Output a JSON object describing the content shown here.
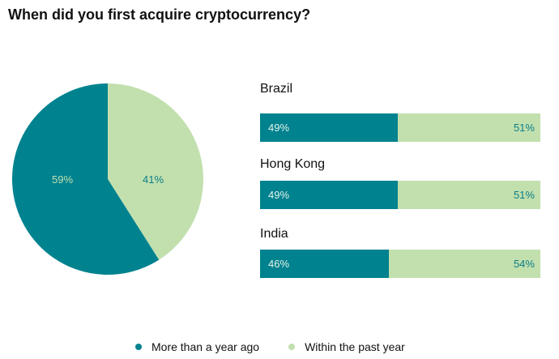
{
  "chart_data": [
    {
      "type": "pie",
      "title": "When did you first acquire cryptocurrency?",
      "slices": [
        {
          "name": "Within the past year",
          "value": 41,
          "label": "41%"
        },
        {
          "name": "More than a year ago",
          "value": 59,
          "label": "59%"
        }
      ]
    },
    {
      "type": "bar",
      "stacked": true,
      "orientation": "horizontal",
      "categories": [
        "Brazil",
        "Hong Kong",
        "India"
      ],
      "series": [
        {
          "name": "More than a year ago",
          "values": [
            49,
            49,
            46
          ],
          "labels": [
            "49%",
            "49%",
            "46%"
          ]
        },
        {
          "name": "Within the past year",
          "values": [
            51,
            51,
            54
          ],
          "labels": [
            "51%",
            "51%",
            "54%"
          ]
        }
      ]
    }
  ],
  "legend": [
    "More than a year ago",
    "Within the past year"
  ],
  "colors": {
    "more": "#00828f",
    "within": "#c2e0ae"
  }
}
